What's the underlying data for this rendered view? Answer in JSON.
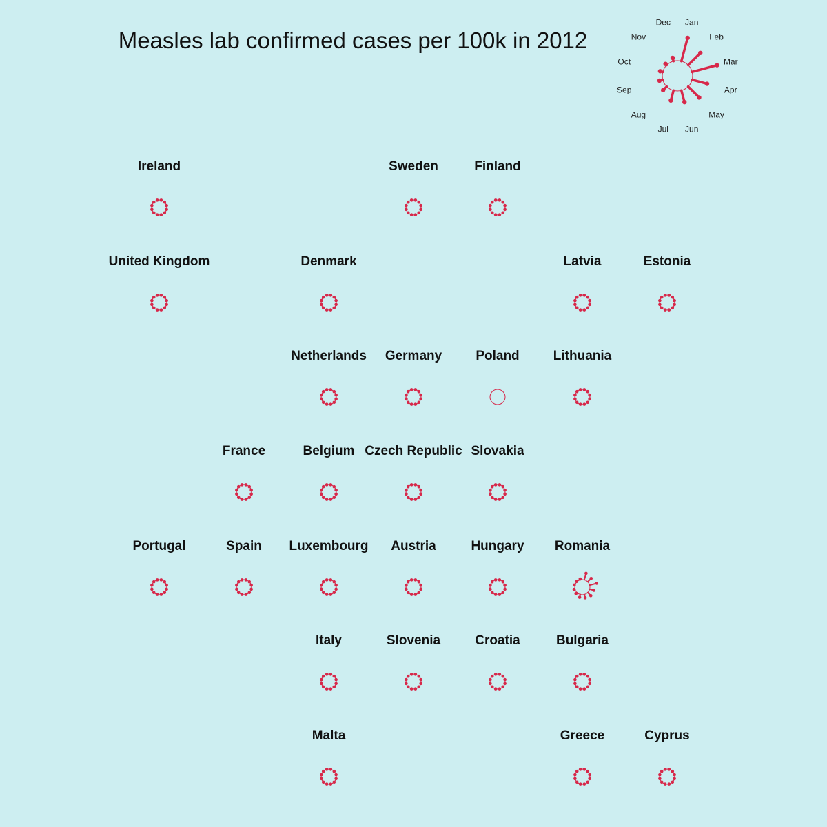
{
  "title": "Measles lab confirmed cases per 100k in 2012",
  "colors": {
    "background": "#cdeef1",
    "mark": "#d7284a",
    "text": "#111111"
  },
  "chart_data": {
    "type": "radial-grid",
    "title": "Measles lab confirmed cases per 100k in 2012",
    "legend": {
      "example": "Romania",
      "months": [
        "Jan",
        "Feb",
        "Mar",
        "Apr",
        "May",
        "Jun",
        "Jul",
        "Aug",
        "Sep",
        "Oct",
        "Nov",
        "Dec"
      ]
    },
    "months": [
      "Jan",
      "Feb",
      "Mar",
      "Apr",
      "May",
      "Jun",
      "Jul",
      "Aug",
      "Sep",
      "Oct",
      "Nov",
      "Dec"
    ],
    "countries": [
      {
        "name": "Ireland",
        "col": 0,
        "row": 0,
        "values": [
          0,
          0,
          0,
          0,
          0,
          0,
          0,
          0,
          0,
          0,
          0,
          0
        ]
      },
      {
        "name": "Sweden",
        "col": 3,
        "row": 0,
        "values": [
          0,
          0,
          0,
          0,
          0,
          0,
          0,
          0,
          0,
          0,
          0,
          0
        ]
      },
      {
        "name": "Finland",
        "col": 4,
        "row": 0,
        "values": [
          0,
          0,
          0,
          0,
          0,
          0,
          0,
          0,
          0,
          0,
          0,
          0
        ]
      },
      {
        "name": "United Kingdom",
        "col": 0,
        "row": 1,
        "values": [
          0,
          0,
          0,
          0,
          0,
          0,
          0,
          0,
          0,
          0,
          0,
          0
        ]
      },
      {
        "name": "Denmark",
        "col": 2,
        "row": 1,
        "values": [
          0,
          0,
          0,
          0,
          0,
          0,
          0,
          0,
          0,
          0,
          0,
          0
        ]
      },
      {
        "name": "Latvia",
        "col": 5,
        "row": 1,
        "values": [
          0,
          0,
          0,
          0,
          0,
          0,
          0,
          0,
          0,
          0,
          0,
          0
        ]
      },
      {
        "name": "Estonia",
        "col": 6,
        "row": 1,
        "values": [
          0,
          0,
          0,
          0,
          0,
          0,
          0,
          0,
          0,
          0,
          0,
          0
        ]
      },
      {
        "name": "Netherlands",
        "col": 2,
        "row": 2,
        "values": [
          0,
          0,
          0,
          0,
          0,
          0,
          0,
          0,
          0,
          0,
          0,
          0
        ]
      },
      {
        "name": "Germany",
        "col": 3,
        "row": 2,
        "values": [
          0,
          0,
          0,
          0,
          0,
          0,
          0,
          0,
          0,
          0,
          0,
          0
        ]
      },
      {
        "name": "Poland",
        "col": 4,
        "row": 2,
        "values": null
      },
      {
        "name": "Lithuania",
        "col": 5,
        "row": 2,
        "values": [
          0,
          0,
          0,
          0,
          0,
          0,
          0,
          0,
          0,
          0,
          0,
          0
        ]
      },
      {
        "name": "France",
        "col": 1,
        "row": 3,
        "values": [
          0,
          0,
          0,
          0,
          0,
          0,
          0,
          0,
          0,
          0,
          0,
          0
        ]
      },
      {
        "name": "Belgium",
        "col": 2,
        "row": 3,
        "values": [
          0,
          0,
          0,
          0,
          0,
          0,
          0,
          0,
          0,
          0,
          0,
          0
        ]
      },
      {
        "name": "Czech Republic",
        "col": 3,
        "row": 3,
        "values": [
          0,
          0,
          0,
          0,
          0,
          0,
          0,
          0,
          0,
          0,
          0,
          0
        ]
      },
      {
        "name": "Slovakia",
        "col": 4,
        "row": 3,
        "values": [
          0,
          0,
          0,
          0,
          0,
          0,
          0,
          0,
          0,
          0,
          0,
          0
        ]
      },
      {
        "name": "Portugal",
        "col": 0,
        "row": 4,
        "values": [
          0,
          0,
          0,
          0,
          0,
          0,
          0,
          0,
          0,
          0,
          0,
          0
        ]
      },
      {
        "name": "Spain",
        "col": 1,
        "row": 4,
        "values": [
          0,
          0,
          0,
          0,
          0,
          0,
          0,
          0,
          0,
          0,
          0,
          0
        ]
      },
      {
        "name": "Luxembourg",
        "col": 2,
        "row": 4,
        "values": [
          0,
          0,
          0,
          0,
          0,
          0,
          0,
          0,
          0,
          0,
          0,
          0
        ]
      },
      {
        "name": "Austria",
        "col": 3,
        "row": 4,
        "values": [
          0,
          0,
          0,
          0,
          0,
          0,
          0,
          0,
          0,
          0,
          0,
          0
        ]
      },
      {
        "name": "Hungary",
        "col": 4,
        "row": 4,
        "values": [
          0,
          0,
          0,
          0,
          0,
          0,
          0,
          0,
          0,
          0,
          0,
          0
        ]
      },
      {
        "name": "Romania",
        "col": 5,
        "row": 4,
        "values": [
          0.7,
          0.5,
          0.75,
          0.45,
          0.45,
          0.35,
          0.3,
          0.15,
          0.1,
          0.08,
          0.05,
          0.1
        ]
      },
      {
        "name": "Italy",
        "col": 2,
        "row": 5,
        "values": [
          0,
          0,
          0,
          0,
          0,
          0,
          0,
          0,
          0,
          0,
          0,
          0
        ]
      },
      {
        "name": "Slovenia",
        "col": 3,
        "row": 5,
        "values": [
          0,
          0,
          0,
          0,
          0,
          0,
          0,
          0,
          0,
          0,
          0,
          0
        ]
      },
      {
        "name": "Croatia",
        "col": 4,
        "row": 5,
        "values": [
          0,
          0,
          0,
          0,
          0,
          0,
          0,
          0,
          0,
          0,
          0,
          0
        ]
      },
      {
        "name": "Bulgaria",
        "col": 5,
        "row": 5,
        "values": [
          0,
          0,
          0,
          0,
          0,
          0,
          0,
          0,
          0,
          0,
          0,
          0
        ]
      },
      {
        "name": "Malta",
        "col": 2,
        "row": 6,
        "values": [
          0,
          0,
          0,
          0,
          0,
          0,
          0,
          0,
          0,
          0,
          0,
          0
        ]
      },
      {
        "name": "Greece",
        "col": 5,
        "row": 6,
        "values": [
          0,
          0,
          0,
          0,
          0,
          0,
          0,
          0,
          0,
          0,
          0,
          0
        ]
      },
      {
        "name": "Cyprus",
        "col": 6,
        "row": 6,
        "values": [
          0,
          0,
          0,
          0,
          0,
          0,
          0,
          0,
          0,
          0,
          0,
          0
        ]
      }
    ]
  }
}
